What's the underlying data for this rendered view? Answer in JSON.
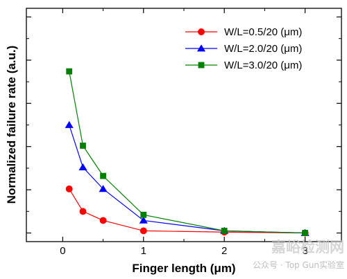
{
  "chart_data": {
    "type": "line",
    "title": "",
    "xlabel": "Finger length (μm)",
    "ylabel": "Normalized failure rate (a.u.)",
    "xlim": [
      -0.45,
      3.45
    ],
    "ylim": [
      -0.2,
      5.2
    ],
    "xticks": [
      0,
      1,
      2,
      3
    ],
    "yticks": [
      0,
      1,
      2,
      3,
      4,
      5
    ],
    "show_y_tick_labels": false,
    "grid": false,
    "legend_position": "top-right",
    "series": [
      {
        "name": "W/L=0.5/20 (μm)",
        "color": "#ff0000",
        "marker": "circle",
        "x": [
          0.08,
          0.25,
          0.5,
          1,
          2,
          3
        ],
        "y": [
          1.02,
          0.5,
          0.29,
          0.05,
          0.02,
          0.0
        ]
      },
      {
        "name": "W/L=2.0/20 (μm)",
        "color": "#0000ff",
        "marker": "triangle",
        "x": [
          0.08,
          0.25,
          0.5,
          1,
          2,
          3
        ],
        "y": [
          2.5,
          1.52,
          1.02,
          0.29,
          0.05,
          0.0
        ]
      },
      {
        "name": "W/L=3.0/20 (μm)",
        "color": "#008000",
        "marker": "square",
        "x": [
          0.08,
          0.25,
          0.5,
          1,
          2,
          3
        ],
        "y": [
          3.74,
          2.02,
          1.32,
          0.42,
          0.05,
          0.0
        ]
      }
    ]
  },
  "watermark": {
    "brand": "嘉峪检测网",
    "account": "公众号 · Top Gun实验室"
  }
}
